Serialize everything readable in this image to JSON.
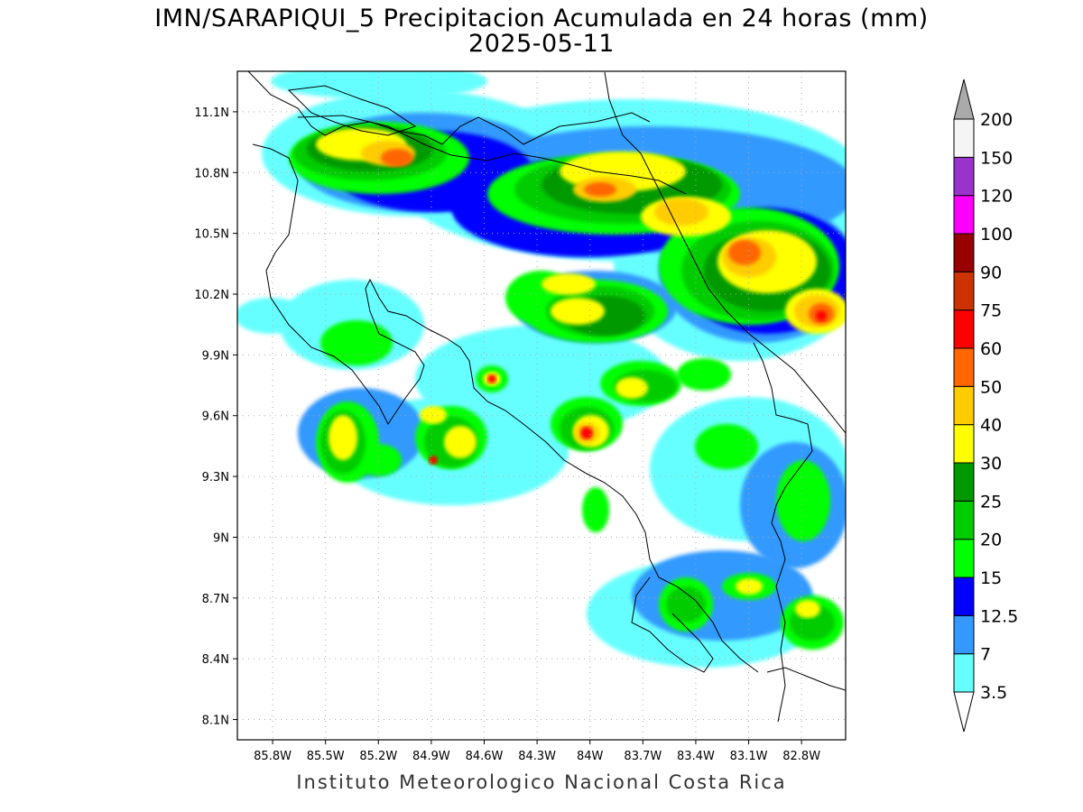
{
  "title": {
    "line1": "IMN/SARAPIQUI_5 Precipitacion Acumulada en 24 horas (mm)",
    "line2": "2025-05-11"
  },
  "footer": "Instituto Meteorologico Nacional Costa Rica",
  "map": {
    "lon_range": [
      -86.0,
      -82.55
    ],
    "lat_range": [
      8.0,
      11.3
    ],
    "lat_ticks": [
      "11.1N",
      "10.8N",
      "10.5N",
      "10.2N",
      "9.9N",
      "9.6N",
      "9.3N",
      "9N",
      "8.7N",
      "8.4N",
      "8.1N"
    ],
    "lat_values": [
      11.1,
      10.8,
      10.5,
      10.2,
      9.9,
      9.6,
      9.3,
      9.0,
      8.7,
      8.4,
      8.1
    ],
    "lon_ticks": [
      "85.8W",
      "85.5W",
      "85.2W",
      "84.9W",
      "84.6W",
      "84.3W",
      "84W",
      "83.7W",
      "83.4W",
      "83.1W",
      "82.8W"
    ],
    "lon_values": [
      -85.8,
      -85.5,
      -85.2,
      -84.9,
      -84.6,
      -84.3,
      -84.0,
      -83.7,
      -83.4,
      -83.1,
      -82.8
    ],
    "grid": true
  },
  "colorbar": {
    "labels": [
      "3.5",
      "7",
      "12.5",
      "15",
      "20",
      "25",
      "30",
      "40",
      "50",
      "60",
      "75",
      "90",
      "100",
      "120",
      "150",
      "200"
    ],
    "colors": [
      "#66ffff",
      "#3399ff",
      "#0000ff",
      "#00ff00",
      "#00cc00",
      "#009900",
      "#ffff00",
      "#ffcc00",
      "#ff6600",
      "#ff0000",
      "#cc3300",
      "#990000",
      "#ff00ff",
      "#9933cc",
      "#f5f5f5"
    ],
    "under_color": "#ffffff",
    "over_color": "#aaaaaa"
  }
}
